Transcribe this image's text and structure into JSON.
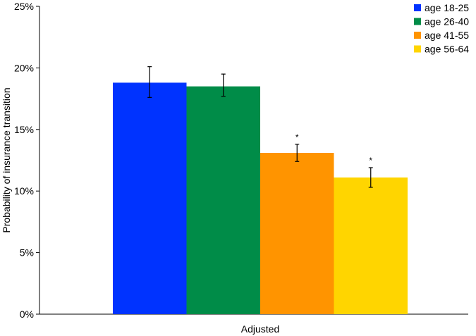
{
  "chart_data": {
    "type": "bar",
    "categories": [
      "Adjusted"
    ],
    "series": [
      {
        "name": "age 18-25",
        "color": "#0033ff",
        "value": 18.8,
        "err_low": 17.6,
        "err_high": 20.1,
        "sig": ""
      },
      {
        "name": "age 26-40",
        "color": "#008c48",
        "value": 18.5,
        "err_low": 17.7,
        "err_high": 19.5,
        "sig": ""
      },
      {
        "name": "age 41-55",
        "color": "#ff9400",
        "value": 13.1,
        "err_low": 12.4,
        "err_high": 13.8,
        "sig": "*"
      },
      {
        "name": "age 56-64",
        "color": "#ffd500",
        "value": 11.1,
        "err_low": 10.3,
        "err_high": 11.9,
        "sig": "*"
      }
    ],
    "ylabel": "Probability of insurance transition",
    "xlabel": "Adjusted",
    "ylim": [
      0,
      25
    ],
    "yticks": [
      0,
      5,
      10,
      15,
      20,
      25
    ],
    "ytick_labels": [
      "0%",
      "5%",
      "10%",
      "15%",
      "20%",
      "25%"
    ],
    "grid": false,
    "legend_position": "top-right"
  }
}
